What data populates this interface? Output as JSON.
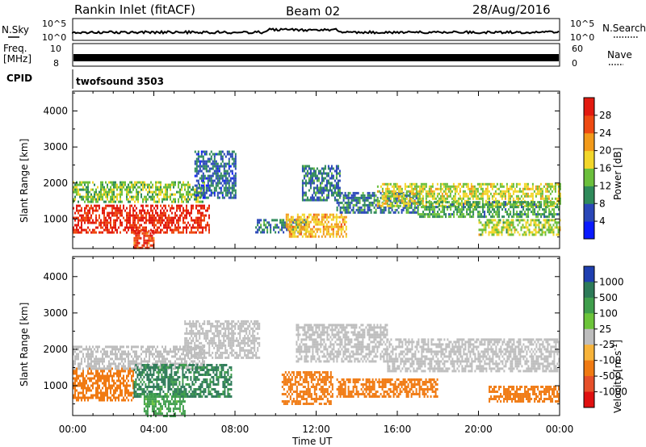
{
  "header": {
    "station": "Rankin Inlet (fitACF)",
    "beam": "Beam 02",
    "date": "28/Aug/2016"
  },
  "status_panels": {
    "nsky_label": "N.Sky",
    "nsearch_label": "N.Search",
    "noise_ticks": [
      "10^5",
      "10^0"
    ],
    "noise_ticks_right": [
      "10^5",
      "10^0"
    ],
    "freq_label_line1": "Freq.",
    "freq_label_line2": "[MHz]",
    "freq_ticks": [
      "10",
      "8"
    ],
    "nave_label": "Nave",
    "nave_ticks": [
      "60",
      "0"
    ],
    "cpid_label": "CPID",
    "cpid_value": "twofsound 3503"
  },
  "chart_data": [
    {
      "type": "heatmap",
      "title": "",
      "xlabel": "Time UT",
      "ylabel": "Slant Range [km]",
      "x_ticks": [
        "00:00",
        "04:00",
        "08:00",
        "12:00",
        "16:00",
        "20:00",
        "00:00"
      ],
      "y_ticks": [
        "1000",
        "2000",
        "3000",
        "4000"
      ],
      "xlim_hours": [
        0,
        24
      ],
      "ylim_km": [
        180,
        4550
      ],
      "colorbar": {
        "label": "Power [dB]",
        "ticks": [
          "4",
          "8",
          "12",
          "16",
          "20",
          "24",
          "28"
        ],
        "range": [
          0,
          30
        ],
        "colors": [
          "#0a1aff",
          "#2a47b8",
          "#2f8a5a",
          "#6bbf3c",
          "#f2d62a",
          "#f29a1a",
          "#ee4a12",
          "#e21a10"
        ]
      },
      "regions": [
        {
          "t": [
            0.0,
            6.7
          ],
          "r": [
            600,
            1400
          ],
          "value": 27
        },
        {
          "t": [
            0.0,
            6.5
          ],
          "r": [
            1450,
            2050
          ],
          "value": 13
        },
        {
          "t": [
            3.0,
            4.0
          ],
          "r": [
            200,
            700
          ],
          "value": 26
        },
        {
          "t": [
            6.0,
            8.0
          ],
          "r": [
            1600,
            2900
          ],
          "value": 7
        },
        {
          "t": [
            9.0,
            11.5
          ],
          "r": [
            600,
            1000
          ],
          "value": 9
        },
        {
          "t": [
            10.5,
            13.5
          ],
          "r": [
            500,
            1150
          ],
          "value": 19
        },
        {
          "t": [
            11.3,
            13.2
          ],
          "r": [
            1500,
            2500
          ],
          "value": 8
        },
        {
          "t": [
            13.0,
            17.0
          ],
          "r": [
            1200,
            1750
          ],
          "value": 8
        },
        {
          "t": [
            15.0,
            24.0
          ],
          "r": [
            1350,
            2000
          ],
          "value": 16
        },
        {
          "t": [
            17.0,
            24.0
          ],
          "r": [
            1050,
            1500
          ],
          "value": 11
        },
        {
          "t": [
            20.0,
            24.0
          ],
          "r": [
            550,
            1000
          ],
          "value": 15
        }
      ]
    },
    {
      "type": "heatmap",
      "title": "",
      "xlabel": "Time UT",
      "ylabel": "Slant Range [km]",
      "x_ticks": [
        "00:00",
        "04:00",
        "08:00",
        "12:00",
        "16:00",
        "20:00",
        "00:00"
      ],
      "y_ticks": [
        "1000",
        "2000",
        "3000",
        "4000"
      ],
      "xlim_hours": [
        0,
        24
      ],
      "ylim_km": [
        180,
        4550
      ],
      "colorbar": {
        "label": "Velocity [m s^-1]",
        "ticks": [
          "1000",
          "500",
          "100",
          "25",
          "-25",
          "-100",
          "-500",
          "-1000"
        ],
        "colors": [
          "#1f3fb0",
          "#2d7a58",
          "#3f9e4c",
          "#6cc43a",
          "#bdbdbd",
          "#f7b33a",
          "#f07a12",
          "#e6502a",
          "#e01010"
        ]
      },
      "regions": [
        {
          "t": [
            0.0,
            3.0
          ],
          "r": [
            600,
            1500
          ],
          "value": -300
        },
        {
          "t": [
            0.0,
            6.5
          ],
          "r": [
            1500,
            2100
          ],
          "value": 0
        },
        {
          "t": [
            3.0,
            7.8
          ],
          "r": [
            700,
            1600
          ],
          "value": 600
        },
        {
          "t": [
            3.5,
            5.5
          ],
          "r": [
            200,
            800
          ],
          "value": 150
        },
        {
          "t": [
            5.5,
            9.2
          ],
          "r": [
            1800,
            2800
          ],
          "value": 0
        },
        {
          "t": [
            10.3,
            12.8
          ],
          "r": [
            500,
            1400
          ],
          "value": -300
        },
        {
          "t": [
            11.0,
            15.5
          ],
          "r": [
            1700,
            2700
          ],
          "value": 0
        },
        {
          "t": [
            13.0,
            18.0
          ],
          "r": [
            700,
            1200
          ],
          "value": -300
        },
        {
          "t": [
            15.5,
            24.0
          ],
          "r": [
            1400,
            2300
          ],
          "value": 0
        },
        {
          "t": [
            20.5,
            24.0
          ],
          "r": [
            550,
            1000
          ],
          "value": -300
        }
      ]
    }
  ]
}
